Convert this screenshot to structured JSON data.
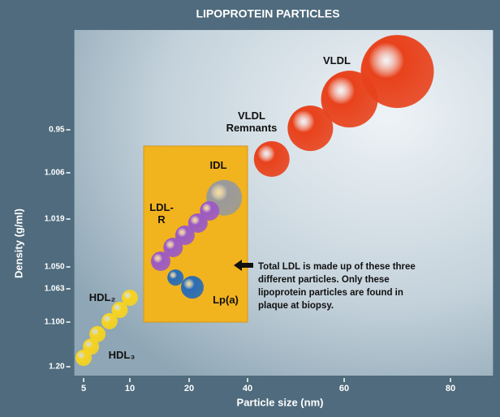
{
  "chart_data": {
    "type": "bubble",
    "title": "LIPOPROTEIN PARTICLES",
    "x_label": "Particle size (nm)",
    "y_label": "Density (g/ml)",
    "xlim": [
      4,
      88
    ],
    "ylim": [
      0.82,
      1.22
    ],
    "xticks": [
      5,
      10,
      20,
      40,
      60,
      80
    ],
    "yticks": [
      0.95,
      1.006,
      1.019,
      {
        "value": 1.05,
        "label": "1.050"
      },
      1.063,
      {
        "value": 1.1,
        "label": "1.100"
      },
      {
        "value": 1.2,
        "label": "1.20"
      }
    ],
    "annotation": "Total LDL is made up of these three different particles. Only these lipoprotein particles are found in plaque at biopsy.",
    "series": [
      {
        "name": "VLDL",
        "color": "#e8421c",
        "x": [
          70,
          61
        ],
        "y": [
          0.874,
          0.91
        ],
        "sizes": [
          45,
          35
        ]
      },
      {
        "name": "VLDL Remnants",
        "color": "#e8421c",
        "x": [
          53,
          45
        ],
        "y": [
          0.948,
          0.988
        ],
        "sizes": [
          28,
          22
        ]
      },
      {
        "name": "IDL",
        "color": "#9a9a9a",
        "x": [
          32
        ],
        "y": [
          1.013
        ],
        "sizes": [
          22
        ]
      },
      {
        "name": "LDL-R",
        "color": "#9b5bc2",
        "x": [
          27,
          23,
          19.3,
          17.3,
          15.2
        ],
        "y": [
          1.0167,
          1.0216,
          1.0295,
          1.0374,
          1.0463
        ],
        "sizes": [
          12,
          12,
          12,
          12,
          12
        ]
      },
      {
        "name": "Lp(a)",
        "color": "#2a6cb5",
        "x": [
          17.7,
          21.1
        ],
        "y": [
          1.0563,
          1.0621
        ],
        "sizes": [
          10,
          14
        ]
      },
      {
        "name": "HDL₂",
        "color": "#f5d321",
        "x": [
          10,
          8.9,
          7.8
        ],
        "y": [
          1.073,
          1.0865,
          1.099
        ],
        "sizes": [
          10,
          10,
          10
        ]
      },
      {
        "name": "HDL₃",
        "color": "#f5d321",
        "x": [
          6.5,
          5.8,
          5
        ],
        "y": [
          1.127,
          1.155,
          1.18
        ],
        "sizes": [
          10,
          10,
          10
        ]
      }
    ]
  }
}
